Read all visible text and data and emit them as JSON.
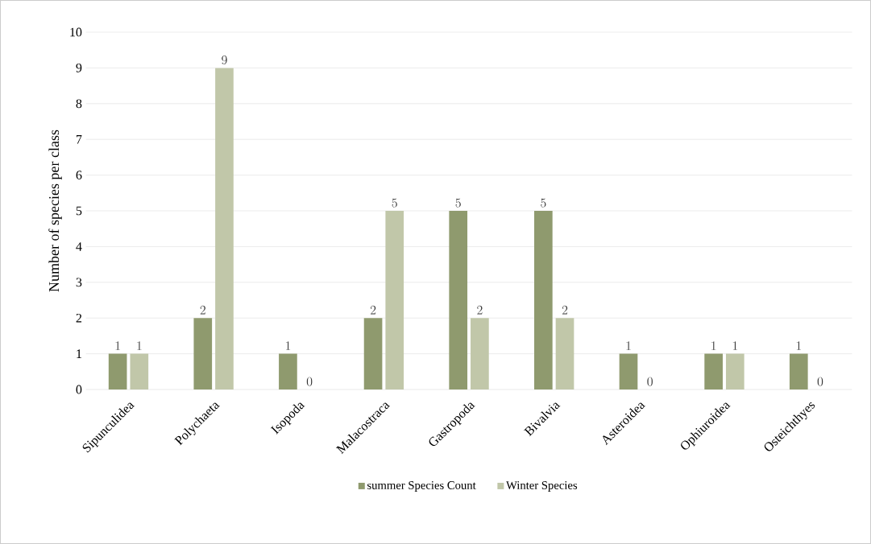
{
  "chart_data": {
    "type": "bar",
    "ylabel": "Number of species per class",
    "categories": [
      "Sipunculidea",
      "Polychaeta",
      "Isopoda",
      "Malacostraca",
      "Gastropoda",
      "Bivalvia",
      "Asteroidea",
      "Ophiuroidea",
      "Osteichthyes"
    ],
    "series": [
      {
        "name": "summer Species Count",
        "color": "#8f9a6e",
        "values": [
          1,
          2,
          1,
          2,
          5,
          5,
          1,
          1,
          1
        ]
      },
      {
        "name": "Winter  Species",
        "color": "#c1c7a9",
        "values": [
          1,
          9,
          0,
          5,
          2,
          2,
          0,
          1,
          0
        ]
      }
    ],
    "ylim": [
      0,
      10
    ],
    "yticks": [
      0,
      1,
      2,
      3,
      4,
      5,
      6,
      7,
      8,
      9,
      10
    ],
    "grid": "y",
    "legend": "bottom",
    "data_labels": true
  }
}
